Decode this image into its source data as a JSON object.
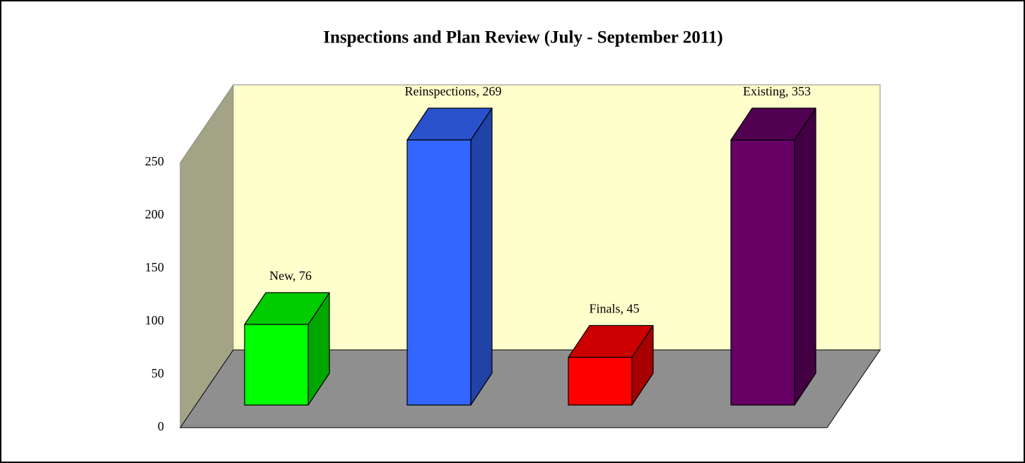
{
  "chart_data": {
    "type": "bar3d",
    "title": "Inspections and Plan Review (July - September 2011)",
    "values": [
      76,
      269,
      45,
      353
    ],
    "value_labels": [
      "New, 76",
      "Reinspections, 269",
      "Finals, 45",
      "Existing, 353"
    ],
    "colors": [
      "#00ff00",
      "#3366ff",
      "#ff0000",
      "#660066"
    ],
    "ylim": [
      0,
      250
    ],
    "yticks": [
      0,
      50,
      100,
      150,
      200,
      250
    ]
  }
}
